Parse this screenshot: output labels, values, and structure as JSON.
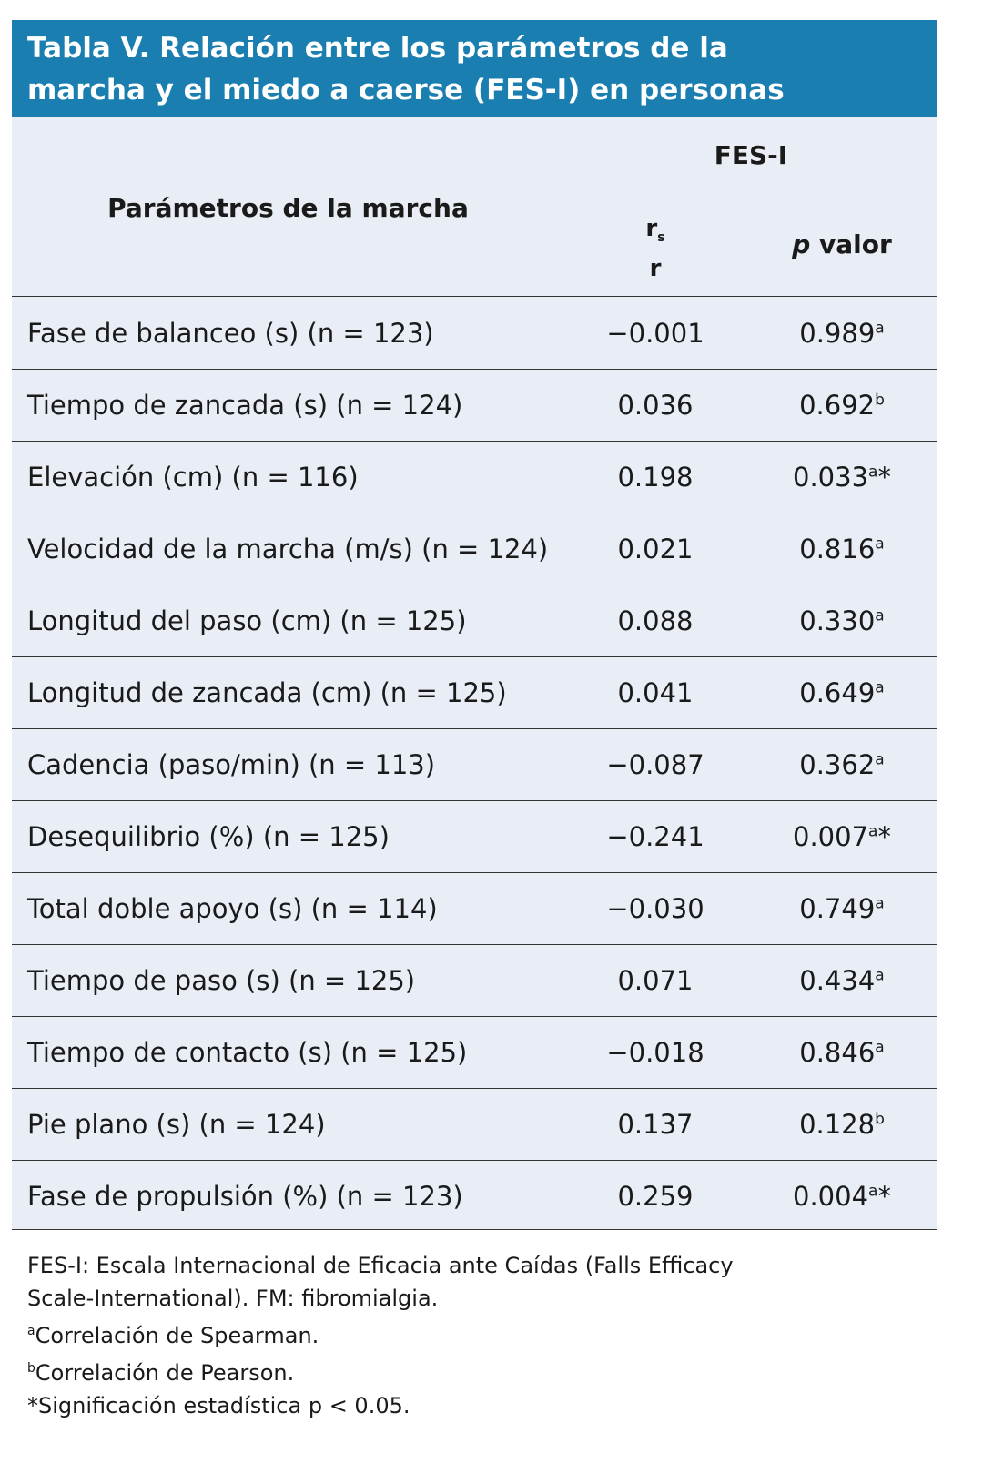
{
  "title": "Tabla V. Relación entre los parámetros de la marcha y el miedo a caerse (FES-I) en personas con FM.",
  "header": {
    "param": "Parámetros de la marcha",
    "group": "FES-I",
    "r_main": "r",
    "r_sub": "s",
    "r_alt": "r",
    "p_italic": "p",
    "p_label": "valor"
  },
  "table": {
    "rows": [
      {
        "param": "Fase de balanceo (s) (n = 123)",
        "r": "−0.001",
        "p": "0.989",
        "sup": "a"
      },
      {
        "param": "Tiempo de zancada (s) (n = 124)",
        "r": "0.036",
        "p": "0.692",
        "sup": "b"
      },
      {
        "param": "Elevación (cm) (n = 116)",
        "r": "0.198",
        "p": "0.033",
        "sup": "a",
        "star": "*"
      },
      {
        "param": "Velocidad de la marcha (m/s) (n = 124)",
        "r": "0.021",
        "p": "0.816",
        "sup": "a"
      },
      {
        "param": "Longitud del paso (cm) (n = 125)",
        "r": "0.088",
        "p": "0.330",
        "sup": "a"
      },
      {
        "param": "Longitud de zancada (cm) (n = 125)",
        "r": "0.041",
        "p": "0.649",
        "sup": "a"
      },
      {
        "param": "Cadencia (paso/min) (n = 113)",
        "r": "−0.087",
        "p": "0.362",
        "sup": "a"
      },
      {
        "param": "Desequilibrio (%) (n = 125)",
        "r": "−0.241",
        "p": "0.007",
        "sup": "a",
        "star": "*"
      },
      {
        "param": "Total doble apoyo (s) (n = 114)",
        "r": "−0.030",
        "p": "0.749",
        "sup": "a"
      },
      {
        "param": "Tiempo de paso (s) (n = 125)",
        "r": "0.071",
        "p": "0.434",
        "sup": "a"
      },
      {
        "param": "Tiempo de contacto (s) (n = 125)",
        "r": "−0.018",
        "p": "0.846",
        "sup": "a"
      },
      {
        "param": "Pie plano (s) (n = 124)",
        "r": "0.137",
        "p": "0.128",
        "sup": "b"
      },
      {
        "param": "Fase de propulsión (%) (n = 123)",
        "r": "0.259",
        "p": "0.004",
        "sup": "a",
        "star": "*"
      }
    ]
  },
  "notes": [
    {
      "text": "FES-I: Escala Internacional de Eficacia ante Caídas (Falls Efficacy Scale-International). FM: fibromialgia."
    },
    {
      "sup": "a",
      "text": "Correlación de Spearman."
    },
    {
      "sup": "b",
      "text": "Correlación de Pearson."
    },
    {
      "text": "*Significación estadística p < 0.05."
    }
  ]
}
